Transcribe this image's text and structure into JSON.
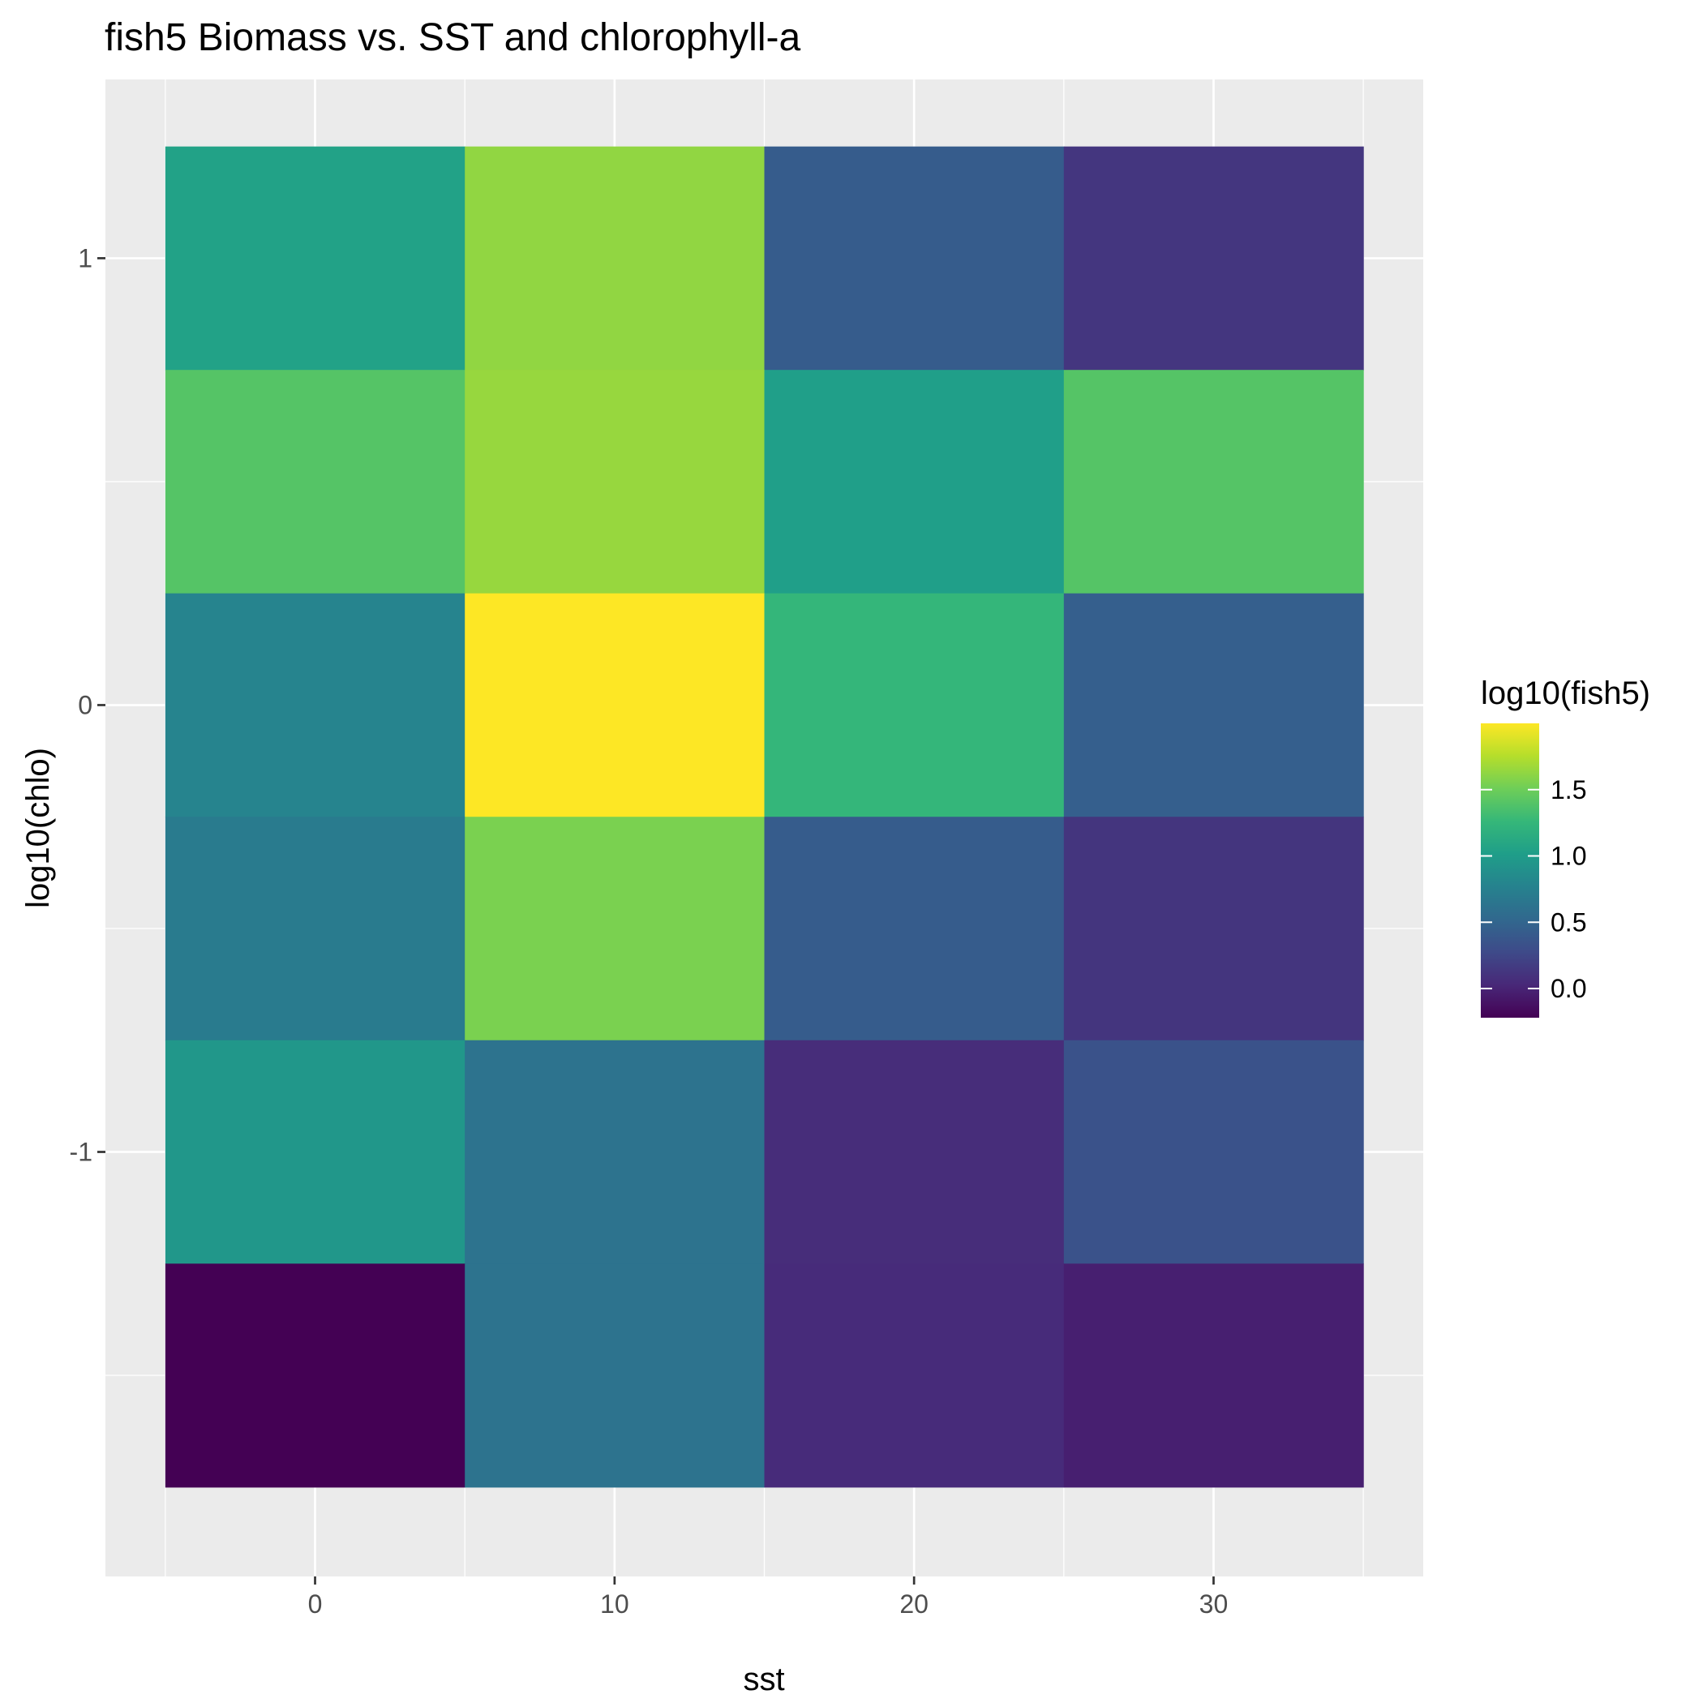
{
  "chart_data": {
    "type": "heatmap",
    "title": "fish5 Biomass vs. SST and chlorophyll-a",
    "xlabel": "sst",
    "ylabel": "log10(chlo)",
    "x_ticks": [
      "0",
      "10",
      "20",
      "30"
    ],
    "x_tick_values": [
      0,
      10,
      20,
      30
    ],
    "y_ticks": [
      "-1",
      "0",
      "1"
    ],
    "y_tick_values": [
      -1,
      0,
      1
    ],
    "xlim": [
      -7,
      37
    ],
    "ylim": [
      -1.95,
      1.4
    ],
    "x_centers": [
      0,
      10,
      20,
      30
    ],
    "x_width": 10,
    "y_centers": [
      1,
      0.5,
      0,
      -0.5,
      -1,
      -1.5
    ],
    "y_height": 0.5,
    "values": [
      [
        1.05,
        1.63,
        0.42,
        0.13
      ],
      [
        1.4,
        1.65,
        1.02,
        1.4
      ],
      [
        0.78,
        2.0,
        1.25,
        0.45
      ],
      [
        0.7,
        1.55,
        0.42,
        0.12
      ],
      [
        0.95,
        0.62,
        0.06,
        0.34
      ],
      [
        -0.22,
        0.62,
        0.05,
        -0.03
      ]
    ],
    "grid": true,
    "legend": {
      "title": "log10(fish5)",
      "position": "right",
      "ticks": [
        "1.5",
        "1.0",
        "0.5",
        "0.0"
      ],
      "tick_values": [
        1.5,
        1.0,
        0.5,
        0.0
      ],
      "range": [
        -0.22,
        2.0
      ],
      "colormap": [
        "#440154",
        "#482878",
        "#3e4a89",
        "#31688e",
        "#26828e",
        "#1f9e89",
        "#35b779",
        "#6ece58",
        "#b5de2b",
        "#fde725"
      ]
    },
    "colors": {
      "panel_background": "#ebebeb",
      "grid_major": "#ffffff",
      "tick_text": "#4d4d4d"
    }
  }
}
